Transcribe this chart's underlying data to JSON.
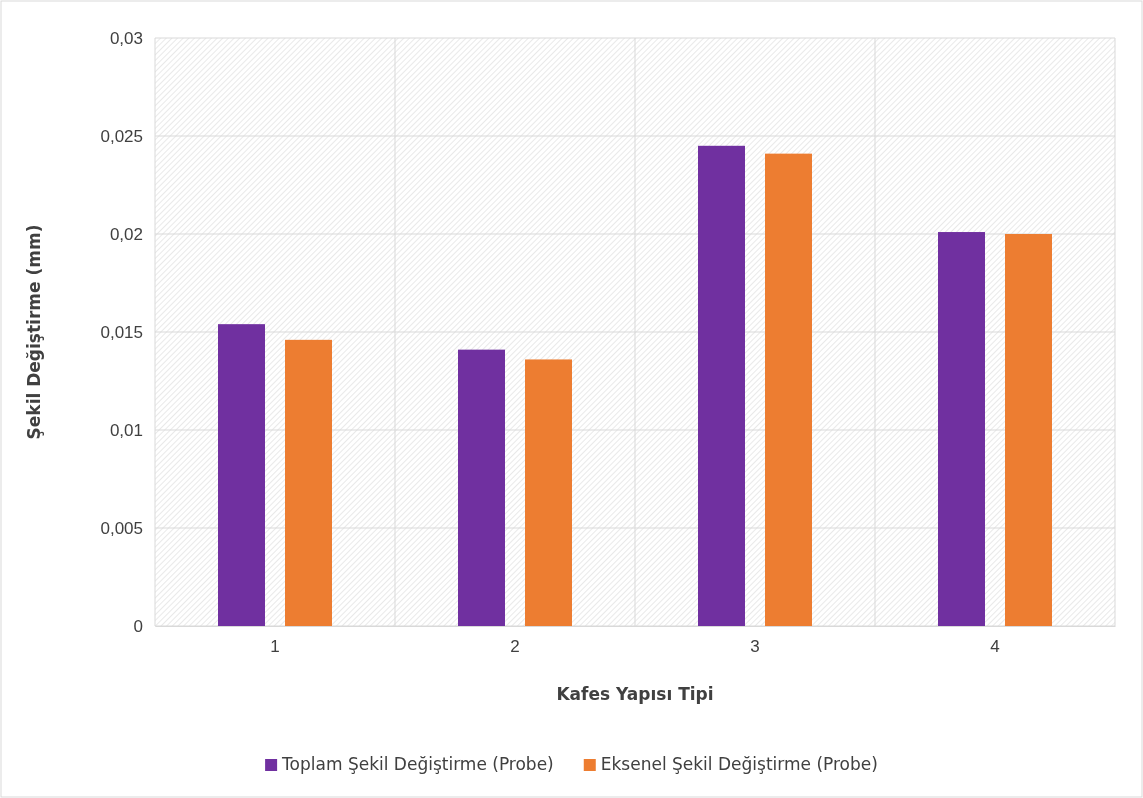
{
  "chart_data": {
    "type": "bar",
    "xlabel": "Kafes Yapısı Tipi",
    "ylabel": "Şekil Değiştirme (mm)",
    "categories": [
      "1",
      "2",
      "3",
      "4"
    ],
    "series": [
      {
        "name": "Toplam Şekil Değiştirme (Probe)",
        "color": "#7030a0",
        "values": [
          0.0154,
          0.0141,
          0.0245,
          0.0201
        ]
      },
      {
        "name": "Eksenel Şekil Değiştirme (Probe)",
        "color": "#ed7d31",
        "values": [
          0.0146,
          0.0136,
          0.0241,
          0.02
        ]
      }
    ],
    "ylim": [
      0,
      0.03
    ],
    "yticks": [
      {
        "value": 0,
        "label": "0"
      },
      {
        "value": 0.005,
        "label": "0,005"
      },
      {
        "value": 0.01,
        "label": "0,01"
      },
      {
        "value": 0.015,
        "label": "0,015"
      },
      {
        "value": 0.02,
        "label": "0,02"
      },
      {
        "value": 0.025,
        "label": "0,025"
      },
      {
        "value": 0.03,
        "label": "0,03"
      }
    ],
    "grid": true,
    "legend": "bottom"
  }
}
